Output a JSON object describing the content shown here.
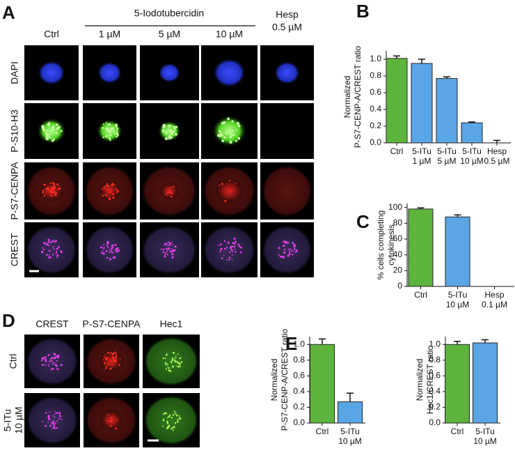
{
  "panel_labels": [
    "A",
    "B",
    "C",
    "D",
    "E"
  ],
  "panel_a": {
    "drug": "5-Iodotubercidin",
    "columns": [
      [
        "Ctrl"
      ],
      [
        "1 µM"
      ],
      [
        "5 µM"
      ],
      [
        "10 µM"
      ],
      [
        "Hesp",
        "0.5 µM"
      ]
    ],
    "rows": [
      "DAPI",
      "P-S10-H3",
      "P-S7-CENPA",
      "CREST"
    ]
  },
  "panel_d": {
    "columns": [
      "CREST",
      "P-S7-CENPA",
      "Hec1"
    ],
    "rows": [
      [
        "Ctrl"
      ],
      [
        "5-ITu",
        "10 µM"
      ]
    ]
  },
  "chart_data": [
    {
      "type": "bar",
      "ylabel": [
        "Normalized",
        "P-S7-CENP-A/CREST ratio"
      ],
      "categories": [
        [
          "Ctrl"
        ],
        [
          "5-ITu",
          "1 µM"
        ],
        [
          "5-ITu",
          "5 µM"
        ],
        [
          "5-ITu",
          "10 µM"
        ],
        [
          "Hesp",
          "0.5 µM"
        ]
      ],
      "values": [
        1.01,
        0.95,
        0.77,
        0.24,
        0.0
      ],
      "errors": [
        0.03,
        0.05,
        0.02,
        0.01,
        0.03
      ],
      "colors": [
        "#5db43c",
        "#5aa5e6",
        "#5aa5e6",
        "#5aa5e6",
        "#5aa5e6"
      ],
      "ylim": [
        0,
        1.1
      ],
      "yticks": [
        {
          "value": 0,
          "label": "0.0"
        },
        {
          "value": 0.2,
          "label": "0.2"
        },
        {
          "value": 0.4,
          "label": "0.4"
        },
        {
          "value": 0.6,
          "label": "0.6"
        },
        {
          "value": 0.8,
          "label": "0.8"
        },
        {
          "value": 1,
          "label": "1.0"
        }
      ]
    },
    {
      "type": "bar",
      "ylabel": [
        "% cells completing",
        "cytokinesis"
      ],
      "categories": [
        [
          "Ctrl"
        ],
        [
          "5-ITu",
          "10 µM"
        ],
        [
          "Hesp",
          "0.1 µM"
        ]
      ],
      "values": [
        98,
        88,
        0
      ],
      "errors": [
        1.5,
        2.5,
        null
      ],
      "colors": [
        "#5db43c",
        "#5aa5e6",
        "#5aa5e6"
      ],
      "ylim": [
        0,
        105
      ],
      "yticks": [
        0,
        20,
        40,
        60,
        80,
        100
      ]
    },
    {
      "type": "bar",
      "ylabel": [
        "Normalized",
        "P-S7-CENP-A/CREST ratio"
      ],
      "categories": [
        [
          "Ctrl"
        ],
        [
          "5-ITu",
          "10 µM"
        ]
      ],
      "values": [
        1.0,
        0.27
      ],
      "errors": [
        0.07,
        0.11
      ],
      "colors": [
        "#5db43c",
        "#5aa5e6"
      ],
      "ylim": [
        0,
        1.1
      ],
      "yticks": [
        {
          "value": 0,
          "label": "0.0"
        },
        {
          "value": 0.2,
          "label": "0.2"
        },
        {
          "value": 0.4,
          "label": "0.4"
        },
        {
          "value": 0.6,
          "label": "0.6"
        },
        {
          "value": 0.8,
          "label": "0.8"
        },
        {
          "value": 1,
          "label": "1.0"
        }
      ]
    },
    {
      "type": "bar",
      "ylabel": [
        "Normalized",
        "Hec1/CREST ratio"
      ],
      "categories": [
        [
          "Ctrl"
        ],
        [
          "5-ITu",
          "10 µM"
        ]
      ],
      "values": [
        1.0,
        1.02
      ],
      "errors": [
        0.04,
        0.04
      ],
      "colors": [
        "#5db43c",
        "#5aa5e6"
      ],
      "ylim": [
        0,
        1.1
      ],
      "yticks": [
        {
          "value": 0,
          "label": "0.0"
        },
        {
          "value": 0.2,
          "label": "0.2"
        },
        {
          "value": 0.4,
          "label": "0.4"
        },
        {
          "value": 0.6,
          "label": "0.6"
        },
        {
          "value": 0.8,
          "label": "0.8"
        },
        {
          "value": 1,
          "label": "1.0"
        }
      ]
    }
  ]
}
